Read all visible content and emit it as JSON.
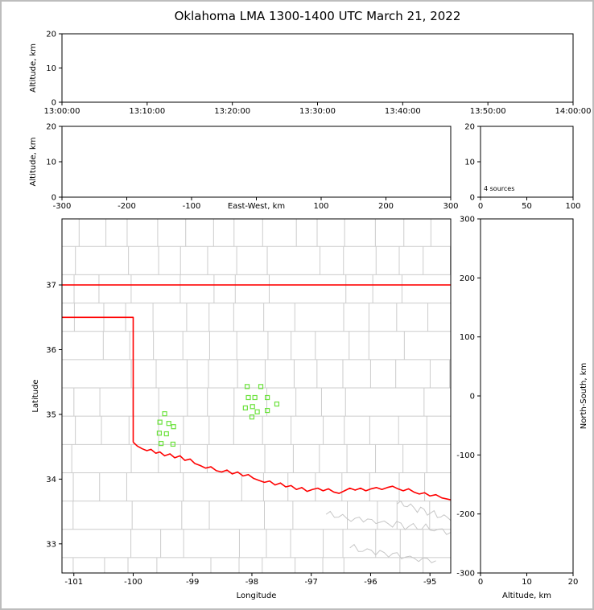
{
  "title": "Oklahoma LMA 1300-1400 UTC March 21, 2022",
  "colors": {
    "state_border": "#ff0000",
    "county_line": "#cccccc",
    "river_line": "#c6c6c6",
    "source_marker": "#6be23c",
    "axis": "#000000",
    "background": "#ffffff",
    "figure_frame": "#bdbdbd"
  },
  "chart_data": [
    {
      "type": "scatter",
      "panel": "time-altitude",
      "xlabel": "",
      "ylabel": "Altitude, km",
      "ylim": [
        0,
        20
      ],
      "yticks": [
        0,
        10,
        20
      ],
      "xticklabels": [
        "13:00:00",
        "13:10:00",
        "13:20:00",
        "13:30:00",
        "13:40:00",
        "13:50:00",
        "14:00:00"
      ],
      "points": []
    },
    {
      "type": "scatter",
      "panel": "eastwest-altitude",
      "xlabel": "East-West, km",
      "ylabel": "Altitude, km",
      "xlim": [
        -300,
        300
      ],
      "xticks": [
        -300,
        -200,
        -100,
        0,
        100,
        200,
        300
      ],
      "ylim": [
        0,
        20
      ],
      "yticks": [
        0,
        10,
        20
      ],
      "points": []
    },
    {
      "type": "histogram",
      "panel": "altitude-source-histogram",
      "annotation": "4 sources",
      "xlim": [
        0,
        100
      ],
      "xticks": [
        0,
        50,
        100
      ],
      "ylim": [
        0,
        20
      ],
      "yticks": [
        0,
        10,
        20
      ],
      "values": []
    },
    {
      "type": "scatter",
      "panel": "plan-view-map",
      "xlabel": "Longitude",
      "ylabel": "Latitude",
      "xlim": [
        -101.2,
        -94.65
      ],
      "xticks": [
        -101,
        -100,
        -99,
        -98,
        -97,
        -96,
        -95
      ],
      "ylim": [
        32.55,
        38.02
      ],
      "yticks": [
        33,
        34,
        35,
        36,
        37
      ],
      "sources": [
        [
          -98.08,
          35.43
        ],
        [
          -97.85,
          35.43
        ],
        [
          -98.06,
          35.26
        ],
        [
          -97.95,
          35.26
        ],
        [
          -97.74,
          35.26
        ],
        [
          -98.11,
          35.1
        ],
        [
          -97.99,
          35.12
        ],
        [
          -97.91,
          35.04
        ],
        [
          -97.74,
          35.06
        ],
        [
          -97.58,
          35.16
        ],
        [
          -98.0,
          34.96
        ],
        [
          -99.47,
          35.01
        ],
        [
          -99.55,
          34.88
        ],
        [
          -99.4,
          34.86
        ],
        [
          -99.32,
          34.81
        ],
        [
          -99.56,
          34.71
        ],
        [
          -99.44,
          34.7
        ],
        [
          -99.53,
          34.55
        ],
        [
          -99.33,
          34.54
        ]
      ],
      "state_borders": {
        "kansas_south": [
          [
            -101.2,
            37.0
          ],
          [
            -94.65,
            37.0
          ]
        ],
        "texas_panhandle": [
          [
            -101.2,
            36.5
          ],
          [
            -100.0,
            36.5
          ],
          [
            -100.0,
            34.57
          ]
        ],
        "red_river": [
          [
            -100.0,
            34.57
          ],
          [
            -99.93,
            34.51
          ],
          [
            -99.85,
            34.47
          ],
          [
            -99.77,
            34.44
          ],
          [
            -99.7,
            34.46
          ],
          [
            -99.62,
            34.4
          ],
          [
            -99.55,
            34.42
          ],
          [
            -99.47,
            34.36
          ],
          [
            -99.38,
            34.39
          ],
          [
            -99.3,
            34.33
          ],
          [
            -99.21,
            34.36
          ],
          [
            -99.13,
            34.29
          ],
          [
            -99.04,
            34.31
          ],
          [
            -98.96,
            34.24
          ],
          [
            -98.87,
            34.21
          ],
          [
            -98.78,
            34.17
          ],
          [
            -98.69,
            34.19
          ],
          [
            -98.6,
            34.13
          ],
          [
            -98.51,
            34.11
          ],
          [
            -98.42,
            34.14
          ],
          [
            -98.33,
            34.08
          ],
          [
            -98.24,
            34.11
          ],
          [
            -98.15,
            34.05
          ],
          [
            -98.06,
            34.07
          ],
          [
            -97.97,
            34.01
          ],
          [
            -97.88,
            33.98
          ],
          [
            -97.79,
            33.95
          ],
          [
            -97.7,
            33.97
          ],
          [
            -97.61,
            33.91
          ],
          [
            -97.52,
            33.94
          ],
          [
            -97.43,
            33.88
          ],
          [
            -97.34,
            33.9
          ],
          [
            -97.25,
            33.84
          ],
          [
            -97.16,
            33.87
          ],
          [
            -97.07,
            33.81
          ],
          [
            -96.98,
            33.84
          ],
          [
            -96.89,
            33.86
          ],
          [
            -96.8,
            33.82
          ],
          [
            -96.71,
            33.85
          ],
          [
            -96.62,
            33.8
          ],
          [
            -96.53,
            33.78
          ],
          [
            -96.44,
            33.82
          ],
          [
            -96.35,
            33.86
          ],
          [
            -96.26,
            33.83
          ],
          [
            -96.17,
            33.86
          ],
          [
            -96.08,
            33.82
          ],
          [
            -95.99,
            33.85
          ],
          [
            -95.9,
            33.87
          ],
          [
            -95.81,
            33.84
          ],
          [
            -95.72,
            33.87
          ],
          [
            -95.63,
            33.89
          ],
          [
            -95.54,
            33.85
          ],
          [
            -95.45,
            33.82
          ],
          [
            -95.36,
            33.85
          ],
          [
            -95.27,
            33.8
          ],
          [
            -95.18,
            33.77
          ],
          [
            -95.09,
            33.79
          ],
          [
            -95.0,
            33.74
          ],
          [
            -94.9,
            33.76
          ],
          [
            -94.8,
            33.71
          ],
          [
            -94.65,
            33.68
          ]
        ]
      }
    },
    {
      "type": "scatter",
      "panel": "altitude-northsouth",
      "xlabel": "Altitude, km",
      "ylabel": "North-South, km",
      "xlim": [
        0,
        20
      ],
      "xticks": [
        0,
        10,
        20
      ],
      "ylim": [
        -300,
        300
      ],
      "yticks": [
        -300,
        -200,
        -100,
        0,
        100,
        200,
        300
      ],
      "points": []
    }
  ]
}
